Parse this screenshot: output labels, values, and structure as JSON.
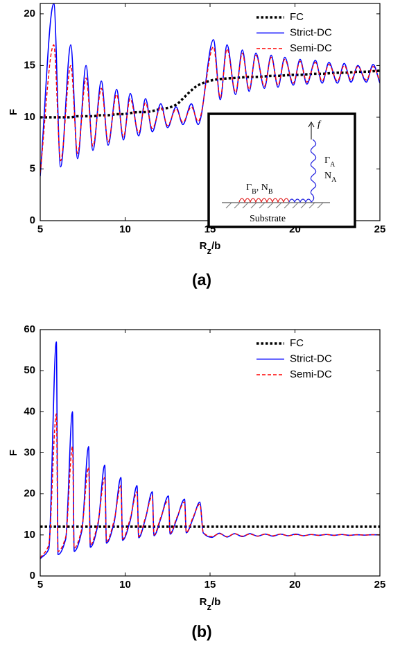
{
  "chart_data": [
    {
      "type": "line",
      "panel_label": "(a)",
      "ylabel": "F",
      "xlabel": [
        "R",
        "z",
        "/b"
      ],
      "xlim": [
        5,
        25
      ],
      "xticks": [
        5,
        10,
        15,
        20,
        25
      ],
      "ylim": [
        0,
        21
      ],
      "yticks": [
        0,
        5,
        10,
        15,
        20
      ],
      "legend": "upper-right",
      "x": [
        5,
        5.8,
        6.2,
        6.8,
        7.2,
        7.7,
        8.1,
        8.6,
        9.0,
        9.5,
        9.9,
        10.3,
        10.8,
        11.2,
        11.6,
        12.1,
        12.5,
        13.0,
        13.4,
        13.9,
        14.3,
        15.2,
        15.6,
        16.0,
        16.5,
        16.9,
        17.3,
        17.7,
        18.2,
        18.6,
        19.0,
        19.4,
        19.9,
        20.3,
        20.7,
        21.2,
        21.6,
        22.0,
        22.5,
        22.9,
        23.3,
        23.7,
        24.2,
        24.6,
        25
      ],
      "series": [
        {
          "name": "FC",
          "color": "#000000",
          "style": "dotted",
          "values": [
            10,
            10,
            10,
            10,
            10.1,
            10.1,
            10.1,
            10.2,
            10.2,
            10.3,
            10.3,
            10.4,
            10.5,
            10.5,
            10.6,
            10.8,
            10.9,
            11.2,
            11.8,
            12.6,
            13.1,
            13.6,
            13.7,
            13.75,
            13.8,
            13.85,
            13.9,
            13.9,
            13.95,
            14,
            14,
            14.05,
            14.1,
            14.1,
            14.15,
            14.2,
            14.2,
            14.25,
            14.3,
            14.3,
            14.35,
            14.4,
            14.4,
            14.45,
            14.5
          ]
        },
        {
          "name": "Strict-DC",
          "color": "#0000ff",
          "style": "solid",
          "values": [
            4.3,
            21,
            5.2,
            17,
            6,
            15,
            6.8,
            13.5,
            7.3,
            12.7,
            7.8,
            12.3,
            8.2,
            11.8,
            8.6,
            11.3,
            9.0,
            11,
            9.3,
            11.3,
            9.3,
            17.5,
            11.7,
            17,
            12.2,
            16.5,
            12.5,
            16.2,
            12.8,
            16,
            12.9,
            15.8,
            13.1,
            15.6,
            13.2,
            15.5,
            13.3,
            15.3,
            13.3,
            15.2,
            13.4,
            15,
            13.4,
            15.1,
            13.3
          ]
        },
        {
          "name": "Semi-DC",
          "color": "#ff0000",
          "style": "dashed",
          "values": [
            4.6,
            17,
            5.8,
            15,
            6.5,
            13.8,
            7.2,
            12.8,
            7.6,
            12.2,
            8.1,
            11.8,
            8.5,
            11.4,
            8.9,
            11,
            9.2,
            10.8,
            9.5,
            11,
            9.6,
            16.8,
            11.9,
            16.6,
            12.4,
            16.2,
            12.7,
            16,
            13,
            15.8,
            13.1,
            15.6,
            13.3,
            15.4,
            13.4,
            15.3,
            13.5,
            15.1,
            13.5,
            15,
            13.6,
            14.9,
            13.6,
            14.9,
            13.5
          ]
        }
      ],
      "inset": {
        "labels": [
          [
            "Γ",
            "B",
            ", N",
            "B"
          ],
          [
            "Γ",
            "A"
          ],
          [
            "N",
            "A"
          ],
          [
            "f"
          ],
          [
            "Substrate"
          ]
        ]
      }
    },
    {
      "type": "line",
      "panel_label": "(b)",
      "ylabel": "F",
      "xlabel": [
        "R",
        "z",
        "/b"
      ],
      "xlim": [
        5,
        25
      ],
      "xticks": [
        5,
        10,
        15,
        20,
        25
      ],
      "ylim": [
        0,
        60
      ],
      "yticks": [
        0,
        10,
        20,
        30,
        40,
        50,
        60
      ],
      "legend": "upper-right",
      "x": [
        5,
        5.5,
        5.95,
        6.05,
        6.5,
        6.9,
        7.0,
        7.45,
        7.85,
        7.95,
        8.4,
        8.8,
        8.9,
        9.35,
        9.75,
        9.85,
        10.3,
        10.7,
        10.8,
        11.2,
        11.6,
        11.7,
        12.1,
        12.55,
        12.65,
        13.05,
        13.5,
        13.6,
        14.0,
        14.4,
        14.6,
        15.1,
        15.55,
        16.0,
        16.45,
        16.9,
        17.35,
        17.8,
        18.25,
        18.7,
        19.15,
        19.6,
        20.05,
        20.5,
        20.95,
        21.4,
        21.85,
        22.3,
        22.75,
        23.2,
        23.65,
        24.1,
        24.55,
        25.0
      ],
      "series": [
        {
          "name": "FC",
          "color": "#000000",
          "style": "dotted",
          "x": [
            5,
            25
          ],
          "values": [
            12,
            12
          ]
        },
        {
          "name": "Strict-DC",
          "color": "#0000ff",
          "style": "solid",
          "values": [
            4.2,
            6.5,
            57,
            5.2,
            9,
            40,
            6,
            11,
            31.5,
            7,
            12.5,
            27,
            8,
            13,
            24,
            8.7,
            13.5,
            22,
            9.3,
            14,
            20.5,
            9.8,
            14,
            19.5,
            10.2,
            14,
            18.7,
            10.5,
            14,
            18,
            10.5,
            9.4,
            10.4,
            9.5,
            10.3,
            9.6,
            10.3,
            9.7,
            10.2,
            9.7,
            10.2,
            9.8,
            10.2,
            9.8,
            10.1,
            9.9,
            10.1,
            9.9,
            10.1,
            9.9,
            10.05,
            9.95,
            10.05,
            10
          ]
        },
        {
          "name": "Semi-DC",
          "color": "#ff0000",
          "style": "dashed",
          "values": [
            4.4,
            7.5,
            39.5,
            6,
            9.5,
            31.5,
            6.8,
            11.5,
            26.5,
            7.6,
            13,
            24,
            8.4,
            13.5,
            22,
            9,
            14,
            20.5,
            9.6,
            14.3,
            19.5,
            10,
            14.3,
            18.5,
            10.4,
            14.3,
            18,
            10.6,
            14.3,
            17.5,
            10.6,
            9.6,
            10.3,
            9.6,
            10.3,
            9.7,
            10.2,
            9.7,
            10.2,
            9.8,
            10.2,
            9.8,
            10.1,
            9.8,
            10.1,
            9.9,
            10.1,
            9.9,
            10.1,
            9.9,
            10.05,
            9.95,
            10.05,
            10
          ]
        }
      ]
    }
  ]
}
